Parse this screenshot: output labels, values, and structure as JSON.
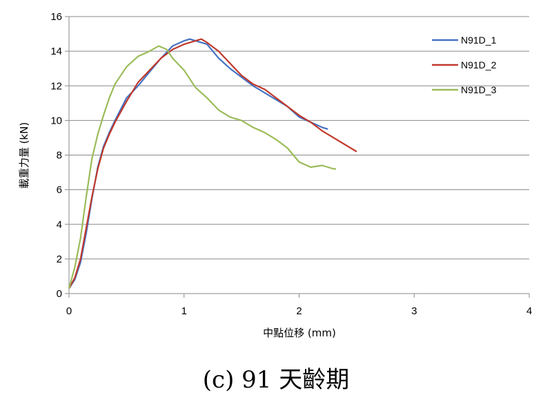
{
  "caption": "(c) 91 天齡期",
  "chart_data": {
    "type": "line",
    "xlabel": "中點位移 (mm)",
    "ylabel": "載重力量 (kN)",
    "xlim": [
      0,
      4
    ],
    "ylim": [
      0,
      16
    ],
    "x_ticks": [
      0,
      1,
      2,
      3,
      4
    ],
    "y_ticks": [
      0,
      2,
      4,
      6,
      8,
      10,
      12,
      14,
      16
    ],
    "grid": "horizontal",
    "legend_position": "top-right",
    "series": [
      {
        "name": "N91D_1",
        "color": "#4472C4",
        "x": [
          0.0,
          0.05,
          0.1,
          0.15,
          0.2,
          0.25,
          0.3,
          0.35,
          0.4,
          0.5,
          0.6,
          0.7,
          0.8,
          0.9,
          1.0,
          1.05,
          1.1,
          1.2,
          1.3,
          1.4,
          1.5,
          1.6,
          1.7,
          1.8,
          1.9,
          2.0,
          2.1,
          2.2,
          2.25
        ],
        "y": [
          0.3,
          0.8,
          1.8,
          3.5,
          5.5,
          7.3,
          8.5,
          9.3,
          10.0,
          11.3,
          12.0,
          12.8,
          13.6,
          14.3,
          14.6,
          14.7,
          14.6,
          14.4,
          13.6,
          13.0,
          12.5,
          12.0,
          11.6,
          11.2,
          10.8,
          10.2,
          9.9,
          9.6,
          9.5
        ]
      },
      {
        "name": "N91D_2",
        "color": "#C0392B",
        "x": [
          0.0,
          0.05,
          0.1,
          0.15,
          0.2,
          0.25,
          0.3,
          0.35,
          0.4,
          0.5,
          0.6,
          0.7,
          0.8,
          0.9,
          1.0,
          1.1,
          1.15,
          1.2,
          1.3,
          1.4,
          1.5,
          1.6,
          1.7,
          1.8,
          1.9,
          2.0,
          2.1,
          2.2,
          2.3,
          2.4,
          2.5
        ],
        "y": [
          0.3,
          0.9,
          2.0,
          3.8,
          5.6,
          7.2,
          8.4,
          9.2,
          9.9,
          11.1,
          12.2,
          12.9,
          13.6,
          14.1,
          14.4,
          14.6,
          14.7,
          14.5,
          14.0,
          13.3,
          12.6,
          12.1,
          11.8,
          11.3,
          10.8,
          10.3,
          9.9,
          9.4,
          9.0,
          8.6,
          8.2
        ]
      },
      {
        "name": "N91D_3",
        "color": "#9BBB59",
        "x": [
          0.0,
          0.05,
          0.1,
          0.15,
          0.2,
          0.25,
          0.3,
          0.35,
          0.4,
          0.5,
          0.6,
          0.7,
          0.78,
          0.85,
          0.9,
          1.0,
          1.1,
          1.2,
          1.3,
          1.4,
          1.5,
          1.6,
          1.7,
          1.8,
          1.9,
          2.0,
          2.1,
          2.2,
          2.3,
          2.32
        ],
        "y": [
          0.3,
          1.5,
          3.2,
          5.6,
          7.8,
          9.2,
          10.3,
          11.3,
          12.1,
          13.1,
          13.7,
          14.0,
          14.3,
          14.1,
          13.6,
          12.9,
          11.9,
          11.3,
          10.6,
          10.2,
          10.0,
          9.6,
          9.3,
          8.9,
          8.4,
          7.6,
          7.3,
          7.4,
          7.2,
          7.2
        ]
      }
    ]
  }
}
